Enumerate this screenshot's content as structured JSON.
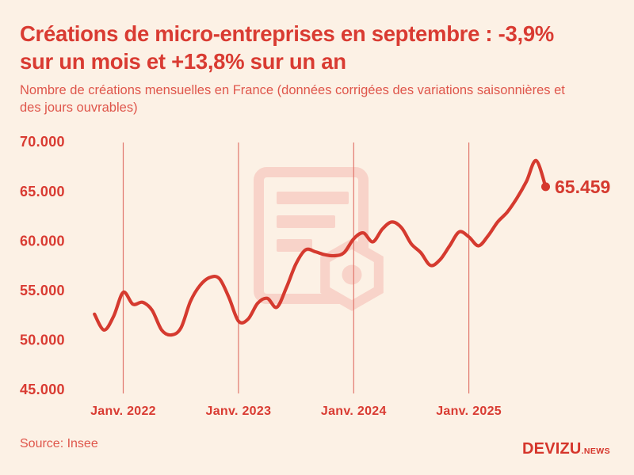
{
  "page": {
    "background": "#fcf1e5"
  },
  "header": {
    "title_lines": [
      "Créations de micro-entreprises en septembre : -3,9%",
      "sur un mois et +13,8% sur un an"
    ],
    "subtitle_lines": [
      "Nombre de créations mensuelles en France (données corrigées des variations saisonnières et",
      "des jours ouvrables)"
    ]
  },
  "chart_data": {
    "type": "line",
    "title": "Créations de micro-entreprises en septembre : -3,9% sur un mois et +13,8% sur un an",
    "subtitle": "Nombre de créations mensuelles en France (données corrigées des variations saisonnières et des jours ouvrables)",
    "x": [
      "2021-10",
      "2021-11",
      "2021-12",
      "2022-01",
      "2022-02",
      "2022-03",
      "2022-04",
      "2022-05",
      "2022-06",
      "2022-07",
      "2022-08",
      "2022-09",
      "2022-10",
      "2022-11",
      "2022-12",
      "2023-01",
      "2023-02",
      "2023-03",
      "2023-04",
      "2023-05",
      "2023-06",
      "2023-07",
      "2023-08",
      "2023-09",
      "2023-10",
      "2023-11",
      "2023-12",
      "2024-01",
      "2024-02",
      "2024-03",
      "2024-04",
      "2024-05",
      "2024-06",
      "2024-07",
      "2024-08",
      "2024-09",
      "2024-10",
      "2024-11",
      "2024-12",
      "2025-01",
      "2025-02",
      "2025-03",
      "2025-04",
      "2025-05",
      "2025-06",
      "2025-07",
      "2025-08",
      "2025-09"
    ],
    "values": [
      52600,
      51000,
      52400,
      54800,
      53600,
      53800,
      53000,
      51000,
      50500,
      51200,
      53900,
      55500,
      56300,
      56200,
      54300,
      51900,
      52100,
      53700,
      54200,
      53300,
      55300,
      57700,
      59100,
      58900,
      58600,
      58500,
      58800,
      60200,
      60800,
      59900,
      61200,
      61900,
      61300,
      59700,
      58800,
      57521,
      58100,
      59500,
      60900,
      60400,
      59500,
      60500,
      61900,
      62900,
      64300,
      66000,
      68100,
      65459
    ],
    "y_ticks": [
      70000,
      65000,
      60000,
      55000,
      50000,
      45000
    ],
    "y_tick_labels": [
      "70.000",
      "65.000",
      "60.000",
      "55.000",
      "50.000",
      "45.000"
    ],
    "x_tick_labels": [
      "Janv. 2022",
      "Janv. 2023",
      "Janv. 2024",
      "Janv. 2025"
    ],
    "x_tick_indices": [
      3,
      15,
      27,
      39
    ],
    "ylim": [
      45000,
      70000
    ],
    "grid": "vertical-only",
    "legend": "none",
    "line_color": "#d53a2f",
    "end_point": {
      "x": "2025-09",
      "value": 65459,
      "label": "65.459"
    }
  },
  "footer": {
    "source": "Source: Insee",
    "brand": "DEVIZU",
    "brand_suffix": ".NEWS"
  },
  "colors": {
    "background": "#fcf1e5",
    "title": "#d93b32",
    "subtitle": "#df564b",
    "axis_labels": "#d93b32",
    "line": "#d53a2f",
    "gridline": "#e1776d",
    "watermark": "#f8d3c9"
  }
}
